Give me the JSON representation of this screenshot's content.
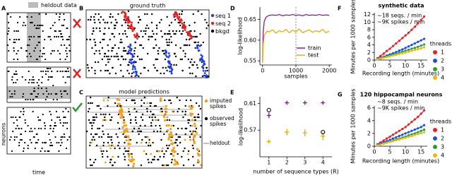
{
  "chart_data": [
    {
      "panel": "A",
      "type": "raster",
      "legend": "heldout data",
      "xlabel": "time",
      "ylabel": "neurons"
    },
    {
      "panel": "B",
      "type": "raster",
      "title": "ground truth",
      "series": [
        {
          "name": "seq 1",
          "color": "#1f3fe0"
        },
        {
          "name": "seq 2",
          "color": "#e02020"
        },
        {
          "name": "bkgd",
          "color": "#000000"
        }
      ]
    },
    {
      "panel": "C",
      "type": "raster",
      "title": "model predictions",
      "series": [
        {
          "name": "imputed spikes",
          "color": "#f0a020"
        },
        {
          "name": "observed spikes",
          "color": "#000000"
        },
        {
          "name": "heldout",
          "color": "#aaaaaa"
        }
      ]
    },
    {
      "panel": "D",
      "type": "line",
      "ylabel": "log-likelihood",
      "xlabel": "samples",
      "x": [
        0,
        20,
        50,
        100,
        150,
        200,
        300,
        400,
        500,
        600,
        700,
        800,
        900,
        1000,
        1100,
        1200,
        1300,
        1400,
        1500,
        1600,
        1700,
        1800,
        1900,
        2000
      ],
      "series": [
        {
          "name": "train",
          "color": "#8b1a9b",
          "values": [
            0.55,
            0.62,
            0.645,
            0.655,
            0.658,
            0.66,
            0.661,
            0.66,
            0.662,
            0.659,
            0.661,
            0.66,
            0.662,
            0.66,
            0.661,
            0.659,
            0.662,
            0.66,
            0.661,
            0.66,
            0.662,
            0.66,
            0.661,
            0.66
          ]
        },
        {
          "name": "test",
          "color": "#e0b010",
          "values": [
            0.545,
            0.59,
            0.61,
            0.618,
            0.622,
            0.62,
            0.625,
            0.617,
            0.623,
            0.62,
            0.626,
            0.618,
            0.624,
            0.62,
            0.627,
            0.618,
            0.622,
            0.625,
            0.619,
            0.623,
            0.62,
            0.626,
            0.618,
            0.622
          ]
        }
      ],
      "vline": 1000,
      "xlim": [
        -80,
        2080
      ],
      "xticks": [
        0,
        1000,
        2000
      ],
      "ylim": [
        0.54,
        0.68
      ],
      "yticks": [
        0.55,
        {
          "value": 0.6,
          "label": "0.60"
        },
        0.65
      ]
    },
    {
      "panel": "E",
      "type": "errorbar",
      "ylabel": "log-likelihood",
      "xlabel": "number of sequence types (R)",
      "x": [
        1,
        2,
        3,
        4
      ],
      "series": [
        {
          "color": "#8b1a9b",
          "values": [
            0.592,
            0.611,
            0.611,
            0.611
          ],
          "errors": [
            0.004,
            0.003,
            0.003,
            0.003
          ]
        },
        {
          "color": "#e0b010",
          "values": [
            0.553,
            0.567,
            0.566,
            0.561
          ],
          "errors": [
            0.003,
            0.005,
            0.005,
            0.006
          ]
        },
        {
          "color": "#000000",
          "marker": "open",
          "x": [
            1,
            4
          ],
          "values": [
            0.6,
            0.567
          ]
        }
      ],
      "xlim": [
        0.5,
        4.5
      ],
      "xticks": [
        1,
        2,
        3,
        4
      ],
      "ylim": [
        0.53,
        0.62
      ],
      "yticks": [
        0.57,
        0.61
      ]
    },
    {
      "panel": "F",
      "type": "line",
      "title": "synthetic data",
      "ylabel": "Minutes per 1000 samples",
      "xlabel": "Recording length (minutes)",
      "annotations": [
        "~18 seqs. / min",
        "~9K spikes / min"
      ],
      "legend_title": "threads",
      "markers": true,
      "x": [
        1,
        2,
        3,
        4,
        5,
        6,
        7,
        8,
        9,
        10,
        11,
        12,
        13,
        14,
        15,
        16
      ],
      "series": [
        {
          "name": "1",
          "color": "#e8202a",
          "values": [
            0.5,
            1.1,
            1.7,
            2.4,
            3.0,
            3.7,
            4.4,
            5.1,
            5.8,
            6.5,
            7.2,
            8.0,
            8.8,
            9.7,
            10.6,
            11.5
          ]
        },
        {
          "name": "2",
          "color": "#1f4fd8",
          "values": [
            0.3,
            0.6,
            0.9,
            1.2,
            1.5,
            1.8,
            2.1,
            2.5,
            2.8,
            3.2,
            3.6,
            4.0,
            4.4,
            4.8,
            5.2,
            5.6
          ]
        },
        {
          "name": "3",
          "color": "#2a9a3a",
          "values": [
            0.25,
            0.5,
            0.75,
            1.0,
            1.2,
            1.45,
            1.7,
            1.95,
            2.2,
            2.45,
            2.7,
            3.0,
            3.2,
            3.5,
            3.8,
            4.1
          ]
        },
        {
          "name": "4",
          "color": "#e8b818",
          "values": [
            0.2,
            0.4,
            0.6,
            0.8,
            1.0,
            1.2,
            1.4,
            1.6,
            1.8,
            2.0,
            2.2,
            2.45,
            2.65,
            2.9,
            3.1,
            3.35
          ]
        }
      ],
      "xlim": [
        0,
        17
      ],
      "xticks": [
        0,
        5,
        10,
        15
      ],
      "ylim": [
        0,
        12.5
      ],
      "yticks": [
        0,
        2,
        4,
        6,
        8,
        10,
        12
      ]
    },
    {
      "panel": "G",
      "type": "line",
      "title": "120 hippocampal neurons",
      "ylabel": "Minutes per 1000 samples",
      "xlabel": "Recording length (minutes)",
      "annotations": [
        "~8 seqs. / min",
        "~9K spikes / min"
      ],
      "legend_title": "threads",
      "markers": true,
      "x": [
        1,
        2,
        3,
        4,
        5,
        6,
        7,
        8,
        9,
        10,
        11,
        12,
        13,
        14,
        15,
        16
      ],
      "series": [
        {
          "name": "1",
          "color": "#e8202a",
          "values": [
            0.3,
            0.6,
            0.9,
            1.2,
            1.5,
            1.8,
            2.1,
            2.4,
            2.7,
            3.0,
            3.4,
            3.8,
            4.2,
            4.6,
            5.1,
            5.6
          ]
        },
        {
          "name": "2",
          "color": "#1f4fd8",
          "values": [
            0.2,
            0.4,
            0.6,
            0.8,
            1.0,
            1.2,
            1.4,
            1.6,
            1.8,
            2.0,
            2.2,
            2.4,
            2.6,
            2.8,
            3.0,
            3.3
          ]
        },
        {
          "name": "3",
          "color": "#2a9a3a",
          "values": [
            0.15,
            0.3,
            0.45,
            0.6,
            0.75,
            0.9,
            1.05,
            1.2,
            1.35,
            1.5,
            1.7,
            1.85,
            2.0,
            2.2,
            2.4,
            2.6
          ]
        },
        {
          "name": "4",
          "color": "#e8b818",
          "values": [
            0.13,
            0.26,
            0.4,
            0.53,
            0.66,
            0.8,
            0.93,
            1.06,
            1.2,
            1.33,
            1.46,
            1.6,
            1.75,
            1.9,
            2.05,
            2.2
          ]
        }
      ],
      "xlim": [
        0,
        17
      ],
      "xticks": [
        0,
        5,
        10,
        15
      ],
      "ylim": [
        0,
        6.3
      ],
      "yticks": [
        0,
        2,
        4,
        6
      ]
    }
  ]
}
